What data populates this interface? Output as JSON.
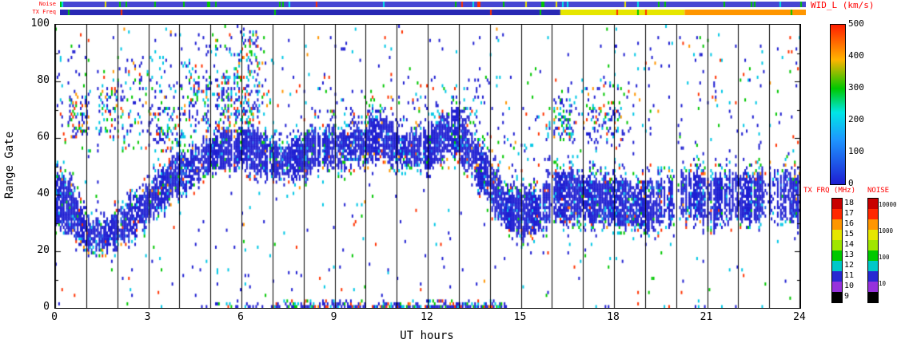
{
  "chart_data": {
    "type": "heatmap",
    "title": "",
    "xlabel": "UT hours",
    "ylabel": "Range Gate",
    "xlim": [
      0,
      24
    ],
    "ylim": [
      0,
      100
    ],
    "xticks": [
      0,
      3,
      6,
      9,
      12,
      15,
      18,
      21,
      24
    ],
    "yticks": [
      0,
      20,
      40,
      60,
      80,
      100
    ],
    "grid": "vertical black line every 1 hour",
    "strip_labels": {
      "noise": "Noise",
      "txfreq": "TX Freq"
    },
    "wid_colorbar": {
      "title": "WID_L (km/s)",
      "ticks": [
        500,
        400,
        300,
        200,
        100,
        0
      ],
      "gradient_top_to_bottom": [
        "#ff1e00 0%",
        "#ffb400 22%",
        "#00c800 40%",
        "#00e6e6 55%",
        "#1e96ff 72%",
        "#1e1ed2 100%"
      ]
    },
    "freq_legend": {
      "title": "TX FRQ (MHz)",
      "blocks": [
        {
          "label": "18",
          "color": "#c80000"
        },
        {
          "label": "17",
          "color": "#ff2800"
        },
        {
          "label": "16",
          "color": "#ff9600"
        },
        {
          "label": "15",
          "color": "#e6e600"
        },
        {
          "label": "14",
          "color": "#a0e600"
        },
        {
          "label": "13",
          "color": "#00c800"
        },
        {
          "label": "12",
          "color": "#00c8c8"
        },
        {
          "label": "11",
          "color": "#2828d2"
        },
        {
          "label": "10",
          "color": "#9632dc"
        },
        {
          "label": "9",
          "color": "#000000"
        }
      ]
    },
    "noise_legend": {
      "title": "NOISE",
      "block_colors_top_to_bottom": [
        "#c80000",
        "#ff2800",
        "#ff9600",
        "#e6e600",
        "#a0e600",
        "#00c800",
        "#00c8c8",
        "#2828d2",
        "#9632dc",
        "#000000"
      ],
      "ticks": [
        "10000",
        "1000",
        "100",
        "10"
      ]
    },
    "noise_strip": {
      "segments": [
        {
          "t0": 0,
          "t1": 24,
          "color": "#4646d2"
        }
      ],
      "specks": [
        [
          "#00c800",
          0.05
        ],
        [
          "#00e6e6",
          0.02
        ],
        [
          "#e6e600",
          0.01
        ],
        [
          "#ff3200",
          0.008
        ]
      ]
    },
    "txfreq_strip": {
      "segments": [
        {
          "t0": 0,
          "t1": 16.1,
          "color": "#2828b4"
        },
        {
          "t0": 16.1,
          "t1": 20.1,
          "color": "#e6e600"
        },
        {
          "t0": 20.1,
          "t1": 24,
          "color": "#ff9600"
        }
      ],
      "specks": [
        [
          "#00c800",
          0.015
        ],
        [
          "#ff3200",
          0.008
        ]
      ]
    },
    "band": [
      [
        0,
        29,
        46
      ],
      [
        0.5,
        27,
        44
      ],
      [
        1,
        21,
        31
      ],
      [
        1.5,
        20,
        30
      ],
      [
        2,
        22,
        33
      ],
      [
        2.5,
        26,
        38
      ],
      [
        3,
        31,
        43
      ],
      [
        3.5,
        36,
        49
      ],
      [
        4,
        41,
        53
      ],
      [
        4.5,
        45,
        56
      ],
      [
        5,
        48,
        59
      ],
      [
        5.5,
        50,
        62
      ],
      [
        6,
        50,
        63
      ],
      [
        6.5,
        48,
        61
      ],
      [
        7,
        46,
        58
      ],
      [
        7.5,
        45,
        57
      ],
      [
        8,
        47,
        60
      ],
      [
        8.5,
        50,
        63
      ],
      [
        9,
        50,
        62
      ],
      [
        9.5,
        51,
        62
      ],
      [
        10,
        52,
        64
      ],
      [
        10.5,
        54,
        67
      ],
      [
        11,
        50,
        62
      ],
      [
        11.5,
        49,
        60
      ],
      [
        12,
        50,
        62
      ],
      [
        12.5,
        53,
        66
      ],
      [
        13,
        54,
        68
      ],
      [
        13.5,
        46,
        60
      ],
      [
        14,
        36,
        51
      ],
      [
        14.5,
        29,
        43
      ],
      [
        15,
        26,
        40
      ],
      [
        15.5,
        26,
        40
      ],
      [
        16,
        30,
        46
      ],
      [
        16.5,
        32,
        48
      ],
      [
        17,
        32,
        46
      ],
      [
        17.5,
        30,
        45
      ],
      [
        18,
        29,
        44
      ],
      [
        18.5,
        28,
        44
      ],
      [
        19,
        28,
        43
      ],
      [
        19.5,
        29,
        45
      ],
      [
        20,
        30,
        46
      ],
      [
        20.5,
        32,
        47
      ],
      [
        21,
        30,
        46
      ],
      [
        21.5,
        30,
        45
      ],
      [
        22,
        32,
        48
      ],
      [
        22.5,
        30,
        46
      ],
      [
        23,
        32,
        48
      ],
      [
        23.5,
        30,
        47
      ],
      [
        24,
        31,
        48
      ]
    ],
    "scatter_regions": [
      [
        0,
        2.5,
        55,
        92,
        0.05
      ],
      [
        2,
        4.5,
        55,
        88,
        0.1
      ],
      [
        4.5,
        7.0,
        60,
        96,
        0.12
      ],
      [
        7,
        9,
        60,
        82,
        0.035
      ],
      [
        9,
        11.5,
        58,
        76,
        0.06
      ],
      [
        11.5,
        14,
        58,
        82,
        0.06
      ],
      [
        14,
        16.2,
        45,
        72,
        0.05
      ],
      [
        15.8,
        18.6,
        55,
        80,
        0.07
      ],
      [
        18.6,
        24,
        55,
        95,
        0.035
      ],
      [
        0,
        24,
        0,
        100,
        0.012
      ]
    ],
    "blobs": [
      [
        0.4,
        1.1,
        60,
        74,
        0.3
      ],
      [
        1.4,
        2.2,
        62,
        78,
        0.25
      ],
      [
        3.2,
        4.2,
        55,
        70,
        0.3
      ],
      [
        4.3,
        5.0,
        62,
        80,
        0.3
      ],
      [
        5.2,
        6.6,
        62,
        82,
        0.35
      ],
      [
        5.9,
        6.5,
        82,
        97,
        0.25
      ],
      [
        7.9,
        8.6,
        60,
        67,
        0.2
      ],
      [
        10.0,
        10.9,
        58,
        70,
        0.3
      ],
      [
        12.3,
        13.4,
        58,
        70,
        0.35
      ],
      [
        16.0,
        16.8,
        60,
        73,
        0.3
      ],
      [
        17.2,
        18.3,
        58,
        70,
        0.25
      ]
    ],
    "bottom_band": [
      [
        4.6,
        7.4,
        0.35
      ],
      [
        7.4,
        14.6,
        0.8
      ],
      [
        0,
        4.6,
        0.04
      ],
      [
        14.6,
        24,
        0.04
      ]
    ],
    "gaps": [
      [
        15.93,
        16.07
      ],
      [
        19.93,
        20.05
      ]
    ],
    "palette_band": [
      [
        0.865,
        "#1e1ed2"
      ],
      [
        0.93,
        "#1e64e6"
      ],
      [
        0.965,
        "#00c8e6"
      ],
      [
        0.985,
        "#00c800"
      ],
      [
        0.995,
        "#ff3200"
      ],
      [
        1.01,
        "#ff9600"
      ]
    ],
    "palette_scatter": [
      [
        0.5,
        "#1e1ed2"
      ],
      [
        0.72,
        "#00c8e6"
      ],
      [
        0.85,
        "#00c800"
      ],
      [
        0.95,
        "#ff3200"
      ],
      [
        1.01,
        "#ff9600"
      ]
    ]
  }
}
